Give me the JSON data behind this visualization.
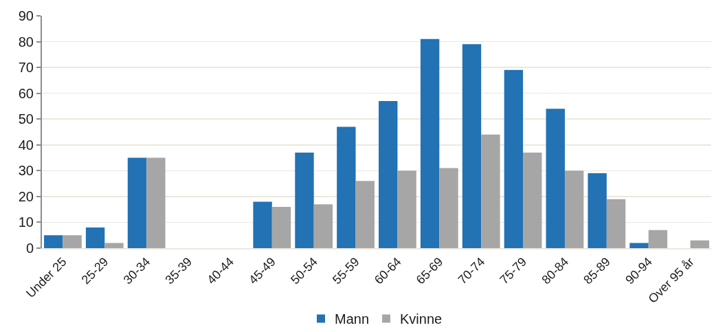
{
  "chart_data": {
    "type": "bar",
    "categories": [
      "Under 25",
      "25-29",
      "30-34",
      "35-39",
      "40-44",
      "45-49",
      "50-54",
      "55-59",
      "60-64",
      "65-69",
      "70-74",
      "75-79",
      "80-84",
      "85-89",
      "90-94",
      "Over 95 år"
    ],
    "series": [
      {
        "name": "Mann",
        "color": "#2272b4",
        "values": [
          5,
          8,
          35,
          0,
          0,
          18,
          37,
          47,
          57,
          81,
          79,
          69,
          54,
          29,
          2,
          0
        ]
      },
      {
        "name": "Kvinne",
        "color": "#a6a6a6",
        "values": [
          5,
          2,
          35,
          0,
          0,
          16,
          17,
          26,
          30,
          31,
          44,
          37,
          30,
          19,
          7,
          3
        ]
      }
    ],
    "ylim": [
      0,
      90
    ],
    "yticks": [
      0,
      10,
      20,
      30,
      40,
      50,
      60,
      70,
      80,
      90
    ],
    "grid": "y",
    "legend": "bottom"
  }
}
